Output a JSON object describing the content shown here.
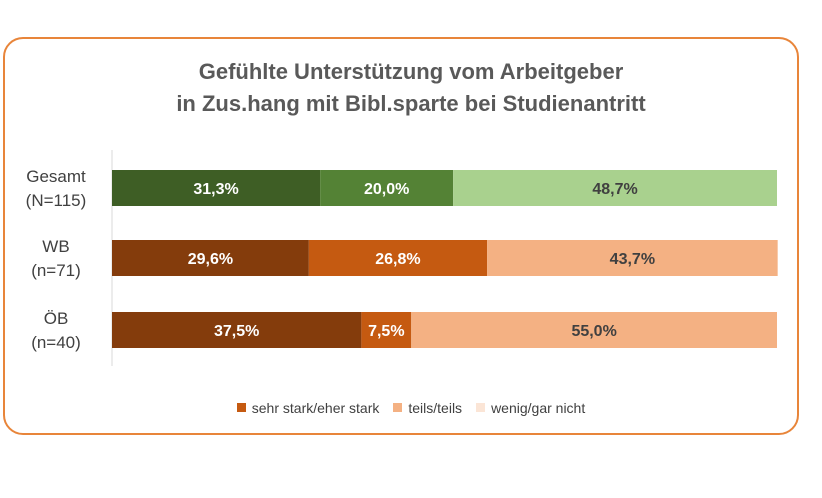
{
  "chart_data": {
    "type": "bar",
    "orientation": "horizontal",
    "stacked": true,
    "percent_stacked": true,
    "title_lines": [
      "Gefühlte Unterstützung vom Arbeitgeber",
      "in Zus.hang mit Bibl.sparte bei Studienantritt"
    ],
    "categories": [
      [
        "Gesamt",
        "(N=115)"
      ],
      [
        "WB",
        "(n=71)"
      ],
      [
        "ÖB",
        "(n=40)"
      ]
    ],
    "series": [
      {
        "name": "sehr stark/eher stark",
        "values": [
          31.3,
          29.6,
          37.5
        ],
        "labels": [
          "31,3%",
          "29,6%",
          "37,5%"
        ]
      },
      {
        "name": "teils/teils",
        "values": [
          20.0,
          26.8,
          7.5
        ],
        "labels": [
          "20,0%",
          "26,8%",
          "7,5%"
        ]
      },
      {
        "name": "wenig/gar nicht",
        "values": [
          48.7,
          43.7,
          55.0
        ],
        "labels": [
          "48,7%",
          "43,7%",
          "55,0%"
        ]
      }
    ],
    "xlim": [
      0,
      100
    ],
    "grid": false,
    "legend_position": "bottom",
    "bar_colors": [
      [
        "#3e5e25",
        "#548235",
        "#a9d18e"
      ],
      [
        "#843c0c",
        "#c55a11",
        "#f4b183"
      ],
      [
        "#843c0c",
        "#c55a11",
        "#f4b183"
      ]
    ],
    "label_colors": [
      [
        "#ffffff",
        "#ffffff",
        "#404040"
      ],
      [
        "#ffffff",
        "#ffffff",
        "#404040"
      ],
      [
        "#ffffff",
        "#ffffff",
        "#404040"
      ]
    ],
    "legend_colors": [
      "#c55a11",
      "#f4b183",
      "#fbe5d6"
    ]
  }
}
